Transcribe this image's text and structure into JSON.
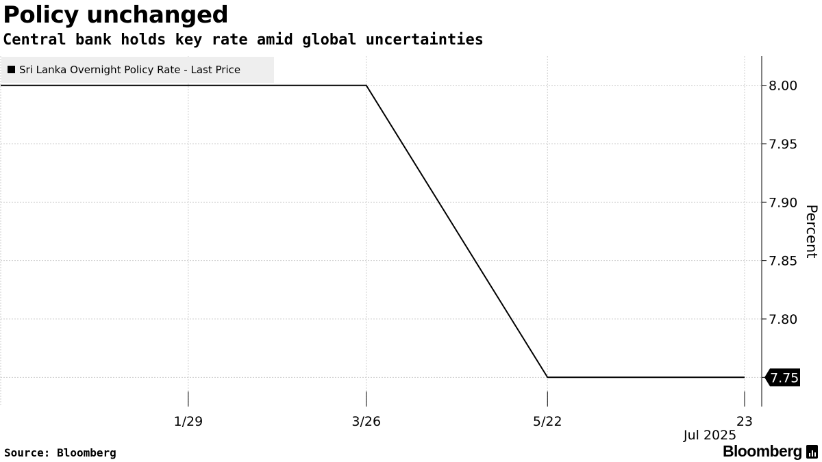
{
  "header": {
    "title": "Policy unchanged",
    "subtitle": "Central bank holds key rate amid global uncertainties"
  },
  "footer": {
    "source": "Source: Bloomberg",
    "brand": "Bloomberg"
  },
  "colors": {
    "line": "#000000",
    "grid": "#cccccc",
    "legend_bg": "#eeeeee",
    "label_bg": "#000000",
    "label_text": "#ffffff"
  },
  "chart_data": {
    "type": "line",
    "title": "Policy unchanged",
    "subtitle": "Central bank holds key rate amid global uncertainties",
    "ylabel": "Percent",
    "xlabel": "",
    "ylim": [
      7.725,
      8.025
    ],
    "y_ticks": [
      8.0,
      7.95,
      7.9,
      7.85,
      7.8,
      7.75
    ],
    "y_tick_labels": [
      "8.00",
      "7.95",
      "7.90",
      "7.85",
      "7.80",
      "7.75"
    ],
    "x_range": [
      "2024-12-01",
      "2025-07-23"
    ],
    "x_ticks": [
      {
        "date": "2025-01-29",
        "label": "1/29"
      },
      {
        "date": "2025-03-26",
        "label": "3/26"
      },
      {
        "date": "2025-05-22",
        "label": "5/22"
      },
      {
        "date": "2025-07-23",
        "label": "23"
      }
    ],
    "x_secondary_labels": [
      {
        "date": "2025-07-10",
        "label": "Jul 2025"
      }
    ],
    "grid": true,
    "legend": "top-left",
    "series": [
      {
        "name": "Sri Lanka Overnight Policy Rate - Last Price",
        "points": [
          {
            "x": "2024-12-01",
            "y": 8.0
          },
          {
            "x": "2025-03-26",
            "y": 8.0
          },
          {
            "x": "2025-05-22",
            "y": 7.75
          },
          {
            "x": "2025-07-23",
            "y": 7.75
          }
        ]
      }
    ],
    "last_value_label": "7.75"
  }
}
